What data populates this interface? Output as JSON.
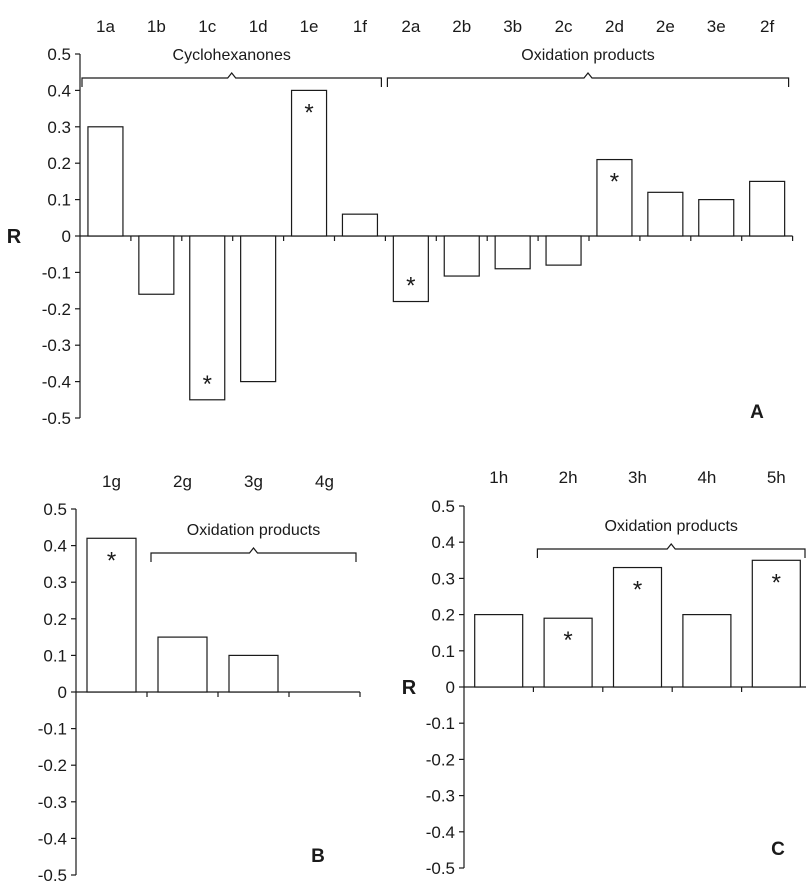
{
  "chart_data": [
    {
      "type": "bar",
      "panel": "A",
      "ylabel": "R",
      "ylim": [
        -0.5,
        0.5
      ],
      "yticks": [
        "0.5",
        "0.4",
        "0.3",
        "0.2",
        "0.1",
        "0",
        "-0.1",
        "-0.2",
        "-0.3",
        "-0.4",
        "-0.5"
      ],
      "categories": [
        "1a",
        "1b",
        "1c",
        "1d",
        "1e",
        "1f",
        "2a",
        "2b",
        "3b",
        "2c",
        "2d",
        "2e",
        "3e",
        "2f"
      ],
      "values": [
        0.3,
        -0.16,
        -0.45,
        -0.4,
        0.4,
        0.06,
        -0.18,
        -0.11,
        -0.09,
        -0.08,
        0.21,
        0.12,
        0.1,
        0.15
      ],
      "significant": [
        false,
        false,
        true,
        false,
        true,
        false,
        true,
        false,
        false,
        false,
        true,
        false,
        false,
        false
      ],
      "groups": [
        {
          "label": "Cyclohexanones",
          "from": 0,
          "to": 5
        },
        {
          "label": "Oxidation products",
          "from": 6,
          "to": 13
        }
      ],
      "grid": false,
      "bar_color": "#ffffff"
    },
    {
      "type": "bar",
      "panel": "B",
      "ylabel": "",
      "ylim": [
        -0.5,
        0.5
      ],
      "yticks": [
        "0.5",
        "0.4",
        "0.3",
        "0.2",
        "0.1",
        "0",
        "-0.1",
        "-0.2",
        "-0.3",
        "-0.4",
        "-0.5"
      ],
      "categories": [
        "1g",
        "2g",
        "3g",
        "4g"
      ],
      "values": [
        0.42,
        0.15,
        0.1,
        null
      ],
      "significant": [
        true,
        false,
        false,
        false
      ],
      "groups": [
        {
          "label": "Oxidation products",
          "from": 1,
          "to": 3
        }
      ],
      "grid": false,
      "bar_color": "#ffffff"
    },
    {
      "type": "bar",
      "panel": "C",
      "ylabel": "R",
      "ylim": [
        -0.5,
        0.5
      ],
      "yticks": [
        "0.5",
        "0.4",
        "0.3",
        "0.2",
        "0.1",
        "0",
        "-0.1",
        "-0.2",
        "-0.3",
        "-0.4",
        "-0.5"
      ],
      "categories": [
        "1h",
        "2h",
        "3h",
        "4h",
        "5h"
      ],
      "values": [
        0.2,
        0.19,
        0.33,
        0.2,
        0.35
      ],
      "significant": [
        false,
        true,
        true,
        false,
        true
      ],
      "groups": [
        {
          "label": "Oxidation products",
          "from": 1,
          "to": 4
        }
      ],
      "grid": false,
      "bar_color": "#ffffff"
    }
  ],
  "markers": {
    "significance": "*"
  }
}
